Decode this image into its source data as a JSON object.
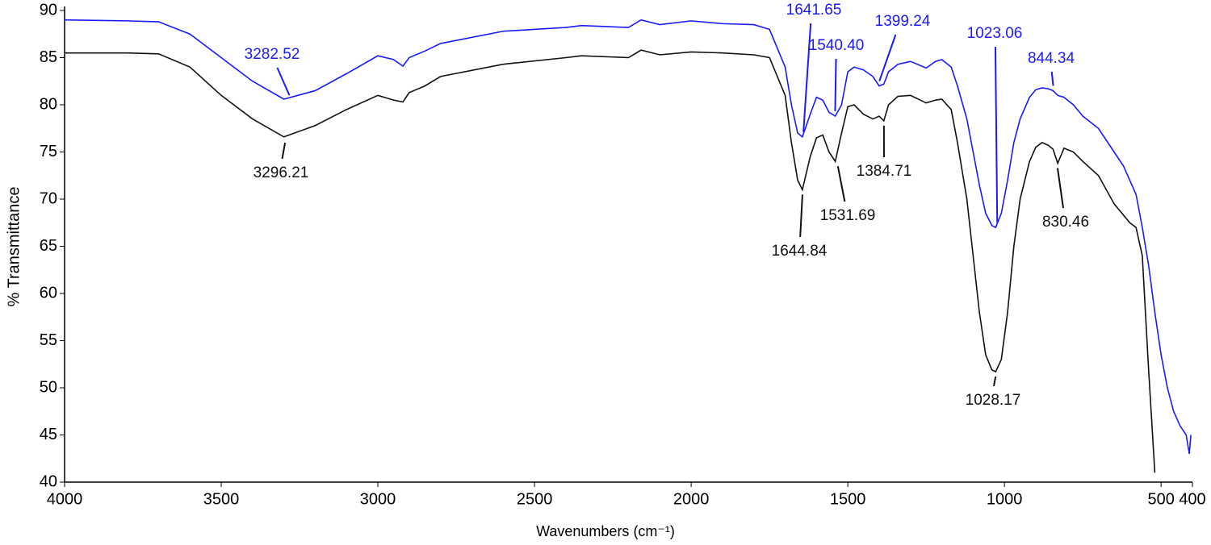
{
  "chart_data": {
    "type": "line",
    "xlabel": "Wavenumbers (cm⁻¹)",
    "ylabel": "% Transmittance",
    "xlim": [
      4000,
      400
    ],
    "ylim": [
      40,
      90
    ],
    "xticks": [
      4000,
      3500,
      3000,
      2500,
      2000,
      1500,
      1000,
      500,
      400
    ],
    "yticks": [
      40,
      45,
      50,
      55,
      60,
      65,
      70,
      75,
      80,
      85,
      90
    ],
    "x": [
      4000,
      3800,
      3700,
      3600,
      3500,
      3400,
      3300,
      3200,
      3100,
      3000,
      2950,
      2920,
      2900,
      2850,
      2800,
      2600,
      2400,
      2350,
      2200,
      2160,
      2100,
      2000,
      1900,
      1800,
      1750,
      1700,
      1680,
      1660,
      1645,
      1620,
      1600,
      1580,
      1560,
      1540,
      1520,
      1500,
      1480,
      1450,
      1420,
      1400,
      1385,
      1370,
      1340,
      1300,
      1250,
      1220,
      1200,
      1170,
      1150,
      1120,
      1100,
      1080,
      1060,
      1040,
      1028,
      1010,
      990,
      970,
      950,
      920,
      900,
      880,
      860,
      845,
      830,
      810,
      780,
      750,
      700,
      650,
      620,
      600,
      580,
      560,
      540,
      520,
      500,
      480,
      460,
      440,
      420,
      410,
      405
    ],
    "series": [
      {
        "color": "#1a1aff",
        "values": [
          89,
          88.9,
          88.8,
          87.5,
          85,
          82.5,
          80.6,
          81.5,
          83.3,
          85.2,
          84.8,
          84.1,
          85,
          85.7,
          86.5,
          87.8,
          88.2,
          88.4,
          88.2,
          89,
          88.5,
          88.9,
          88.6,
          88.5,
          88,
          84,
          80,
          77,
          76.6,
          79,
          80.8,
          80.5,
          79.2,
          78.8,
          80,
          83.5,
          84,
          83.7,
          83,
          82,
          82.2,
          83.5,
          84.3,
          84.6,
          83.9,
          84.6,
          84.8,
          84,
          82,
          78.5,
          75,
          71.5,
          68.5,
          67.2,
          67,
          68.5,
          72,
          76,
          78.5,
          80.8,
          81.6,
          81.8,
          81.7,
          81.5,
          81,
          80.8,
          80,
          78.8,
          77.5,
          75,
          73.5,
          72,
          70.5,
          67,
          63,
          58,
          53.5,
          50,
          47.5,
          46,
          45,
          43,
          45
        ],
        "peaks": [
          {
            "text": "3282.52",
            "x": 3282.52,
            "y": 80.5
          },
          {
            "text": "1641.65",
            "x": 1641.65,
            "y": 76.6
          },
          {
            "text": "1540.40",
            "x": 1540.4,
            "y": 78.8
          },
          {
            "text": "1399.24",
            "x": 1399.24,
            "y": 82
          },
          {
            "text": "1023.06",
            "x": 1023.06,
            "y": 67
          },
          {
            "text": "844.34",
            "x": 844.34,
            "y": 81.5
          }
        ]
      },
      {
        "color": "#111111",
        "values": [
          85.5,
          85.5,
          85.4,
          84,
          81,
          78.5,
          76.6,
          77.8,
          79.5,
          81,
          80.5,
          80.3,
          81.3,
          82,
          83,
          84.3,
          85,
          85.2,
          85,
          85.8,
          85.3,
          85.6,
          85.5,
          85.3,
          85,
          81,
          76,
          72,
          71,
          74.5,
          76.5,
          76.8,
          75,
          74,
          77,
          79.8,
          80,
          79,
          78.5,
          78.8,
          78.3,
          80,
          80.9,
          81,
          80.2,
          80.5,
          80.6,
          79.5,
          76,
          70,
          64,
          58,
          53.5,
          51.9,
          51.7,
          53,
          58,
          65,
          70,
          74,
          75.5,
          76,
          75.7,
          75.3,
          73.8,
          75.4,
          75,
          74,
          72.5,
          69.5,
          68.3,
          67.5,
          67,
          64,
          52,
          41,
          null,
          null,
          null,
          null,
          null,
          null,
          null
        ],
        "peaks": [
          {
            "text": "3296.21",
            "x": 3296.21,
            "y": 76.5
          },
          {
            "text": "1644.84",
            "x": 1644.84,
            "y": 71
          },
          {
            "text": "1531.69",
            "x": 1531.69,
            "y": 74
          },
          {
            "text": "1384.71",
            "x": 1384.71,
            "y": 78.3
          },
          {
            "text": "1028.17",
            "x": 1028.17,
            "y": 51.7
          },
          {
            "text": "830.46",
            "x": 830.46,
            "y": 73.8
          }
        ]
      }
    ]
  }
}
